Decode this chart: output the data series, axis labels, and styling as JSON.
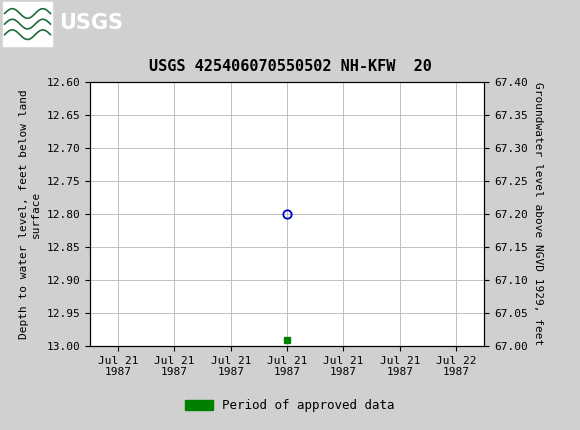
{
  "title": "USGS 425406070550502 NH-KFW  20",
  "header_color": "#1e6b3c",
  "fig_bg_color": "#d0d0d0",
  "plot_bg_color": "#ffffff",
  "grid_color": "#c0c0c0",
  "ylabel_left": "Depth to water level, feet below land\nsurface",
  "ylabel_right": "Groundwater level above NGVD 1929, feet",
  "ylim_left": [
    12.6,
    13.0
  ],
  "ylim_right": [
    67.0,
    67.4
  ],
  "yticks_left": [
    12.6,
    12.65,
    12.7,
    12.75,
    12.8,
    12.85,
    12.9,
    12.95,
    13.0
  ],
  "yticks_right": [
    67.0,
    67.05,
    67.1,
    67.15,
    67.2,
    67.25,
    67.3,
    67.35,
    67.4
  ],
  "xtick_labels": [
    "Jul 21\n1987",
    "Jul 21\n1987",
    "Jul 21\n1987",
    "Jul 21\n1987",
    "Jul 21\n1987",
    "Jul 21\n1987",
    "Jul 22\n1987"
  ],
  "xtick_positions": [
    0,
    1,
    2,
    3,
    4,
    5,
    6
  ],
  "xlim": [
    -0.5,
    6.5
  ],
  "blue_marker_x": 3.0,
  "blue_marker_y": 12.8,
  "green_marker_x": 3.0,
  "green_marker_y": 12.99,
  "blue_marker_color": "#0000cc",
  "green_marker_color": "#008000",
  "legend_label": "Period of approved data",
  "title_fontsize": 11,
  "axis_label_fontsize": 8,
  "tick_fontsize": 8,
  "legend_fontsize": 9
}
